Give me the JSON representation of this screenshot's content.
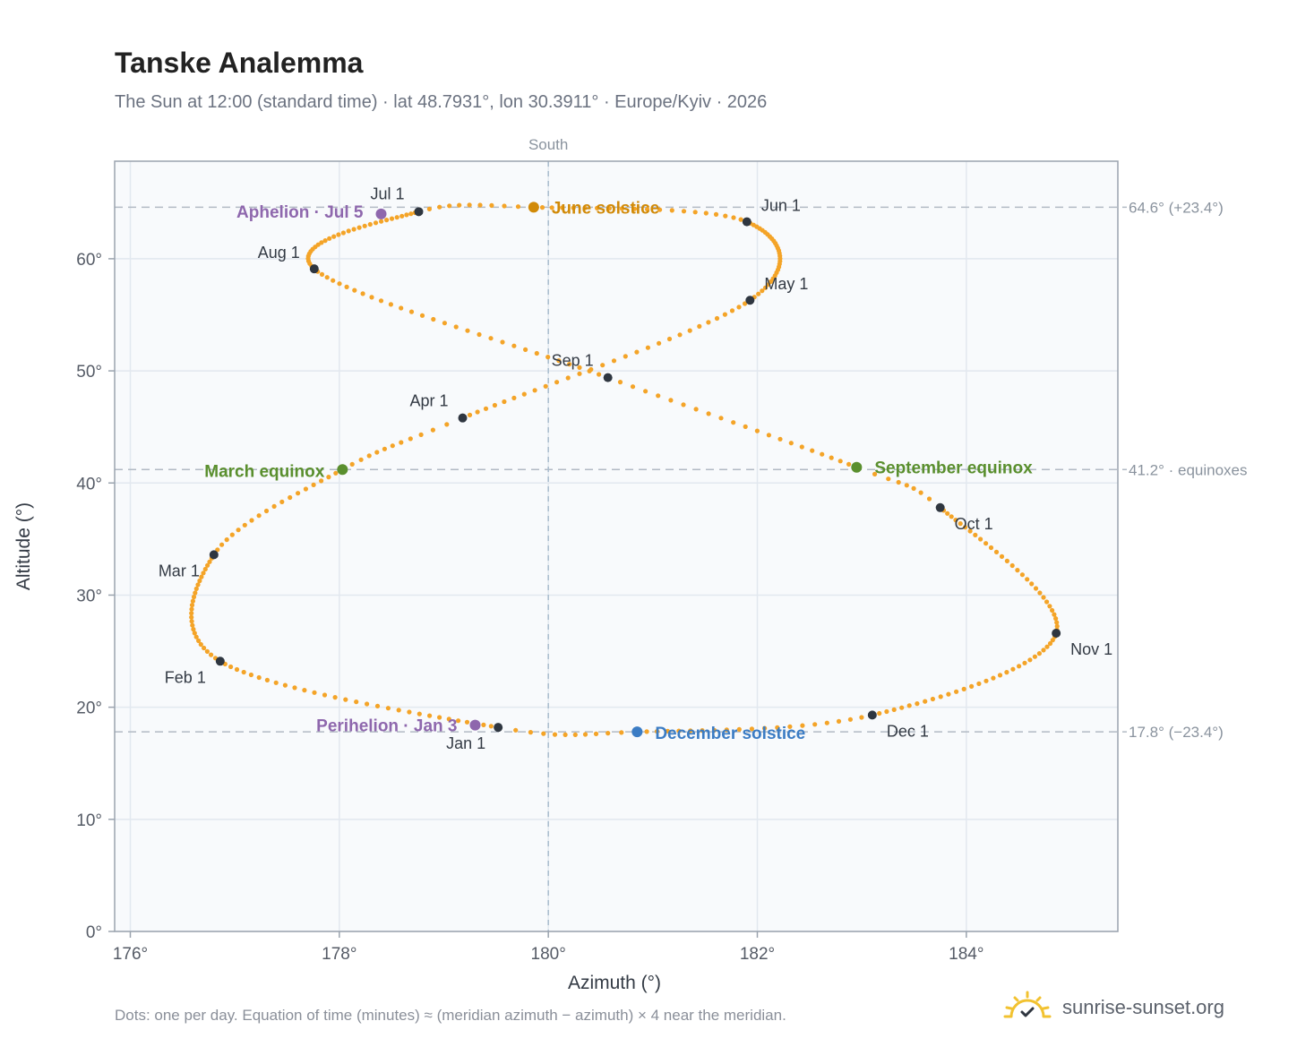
{
  "header": {
    "title": "Tanske Analemma",
    "subtitle": "The Sun at 12:00 (standard time) · lat 48.7931°, lon 30.3911° · Europe/Kyiv · 2026"
  },
  "footer": {
    "note": "Dots: one per day. Equation of time (minutes) ≈ (meridian azimuth − azimuth) × 4 near the meridian.",
    "brand": "sunrise-sunset.org"
  },
  "colors": {
    "path": "#f4a428",
    "month_marker": "#2f3640",
    "june_solstice": "#d18a08",
    "december_solstice": "#3b7cc4",
    "equinox": "#5a8f2e",
    "apsis": "#8e67ad",
    "plot_bg": "#f8fafc",
    "grid": "#e2e8ef",
    "axis": "#9aa3ae",
    "brand_sun": "#f2c230"
  },
  "chart_data": {
    "type": "scatter",
    "xlabel": "Azimuth (°)",
    "ylabel": "Altitude (°)",
    "xlim": [
      175.85,
      185.45
    ],
    "ylim": [
      0,
      68.7
    ],
    "x_ticks": [
      176,
      178,
      180,
      182,
      184
    ],
    "x_tick_labels": [
      "176°",
      "178°",
      "180°",
      "182°",
      "184°"
    ],
    "y_ticks": [
      0,
      10,
      20,
      30,
      40,
      50,
      60
    ],
    "y_tick_labels": [
      "0°",
      "10°",
      "20°",
      "30°",
      "40°",
      "50°",
      "60°"
    ],
    "grid": true,
    "meridian": {
      "azimuth": 180,
      "label": "South"
    },
    "reference_lines": [
      {
        "altitude": 64.6,
        "label": "64.6° (+23.4°)"
      },
      {
        "altitude": 41.2,
        "label": "41.2° · equinoxes"
      },
      {
        "altitude": 17.8,
        "label": "17.8° (−23.4°)"
      }
    ],
    "month_markers": [
      {
        "label": "Jan 1",
        "az": 179.52,
        "alt": 18.2
      },
      {
        "label": "Feb 1",
        "az": 176.86,
        "alt": 24.1
      },
      {
        "label": "Mar 1",
        "az": 176.8,
        "alt": 33.6
      },
      {
        "label": "Apr 1",
        "az": 179.18,
        "alt": 45.8
      },
      {
        "label": "May 1",
        "az": 181.93,
        "alt": 56.3
      },
      {
        "label": "Jun 1",
        "az": 181.9,
        "alt": 63.3
      },
      {
        "label": "Jul 1",
        "az": 178.76,
        "alt": 64.2
      },
      {
        "label": "Aug 1",
        "az": 177.76,
        "alt": 59.1
      },
      {
        "label": "Sep 1",
        "az": 180.57,
        "alt": 49.4
      },
      {
        "label": "Oct 1",
        "az": 183.75,
        "alt": 37.8
      },
      {
        "label": "Nov 1",
        "az": 184.86,
        "alt": 26.6
      },
      {
        "label": "Dec 1",
        "az": 183.1,
        "alt": 19.3
      }
    ],
    "events": [
      {
        "label": "June solstice",
        "az": 179.86,
        "alt": 64.6,
        "color_key": "june_solstice"
      },
      {
        "label": "December solstice",
        "az": 180.85,
        "alt": 17.8,
        "color_key": "december_solstice"
      },
      {
        "label": "March equinox",
        "az": 178.03,
        "alt": 41.2,
        "color_key": "equinox"
      },
      {
        "label": "September equinox",
        "az": 182.95,
        "alt": 41.4,
        "color_key": "equinox"
      },
      {
        "label": "Aphelion · Jul 5",
        "az": 178.4,
        "alt": 64.0,
        "color_key": "apsis"
      },
      {
        "label": "Perihelion · Jan 3",
        "az": 179.3,
        "alt": 18.4,
        "color_key": "apsis"
      }
    ],
    "path_anchors": [
      {
        "day": 1,
        "az": 179.52,
        "alt": 18.2
      },
      {
        "day": 32,
        "az": 176.86,
        "alt": 24.1
      },
      {
        "day": 60,
        "az": 176.8,
        "alt": 33.6
      },
      {
        "day": 79,
        "az": 178.03,
        "alt": 41.2
      },
      {
        "day": 91,
        "az": 179.18,
        "alt": 45.8
      },
      {
        "day": 121,
        "az": 181.93,
        "alt": 56.3
      },
      {
        "day": 152,
        "az": 181.9,
        "alt": 63.3
      },
      {
        "day": 172,
        "az": 179.86,
        "alt": 64.6
      },
      {
        "day": 182,
        "az": 178.76,
        "alt": 64.2
      },
      {
        "day": 213,
        "az": 177.76,
        "alt": 59.1
      },
      {
        "day": 244,
        "az": 180.57,
        "alt": 49.4
      },
      {
        "day": 266,
        "az": 182.95,
        "alt": 41.4
      },
      {
        "day": 274,
        "az": 183.75,
        "alt": 37.8
      },
      {
        "day": 305,
        "az": 184.86,
        "alt": 26.6
      },
      {
        "day": 335,
        "az": 183.1,
        "alt": 19.3
      },
      {
        "day": 355,
        "az": 180.85,
        "alt": 17.8
      },
      {
        "day": 366,
        "az": 179.52,
        "alt": 18.2
      }
    ]
  }
}
